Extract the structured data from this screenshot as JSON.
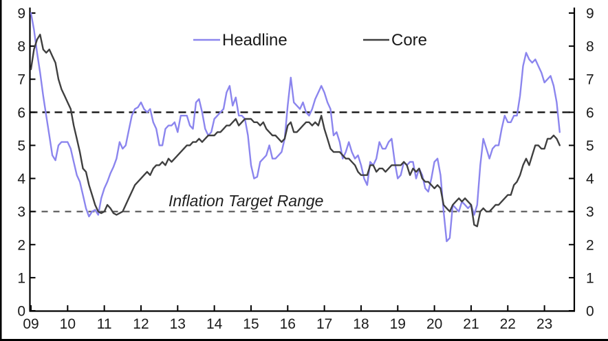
{
  "chart_data": {
    "type": "line",
    "title": "",
    "annotation": "Inflation Target Range",
    "x_start_year": 2009,
    "x_months_per_point": 1,
    "x_tick_labels": [
      "09",
      "10",
      "11",
      "12",
      "13",
      "14",
      "15",
      "16",
      "17",
      "18",
      "19",
      "20",
      "21",
      "22",
      "23"
    ],
    "y_tick_labels": [
      "0",
      "1",
      "2",
      "3",
      "4",
      "5",
      "6",
      "7",
      "8",
      "9"
    ],
    "ylim": [
      0,
      9
    ],
    "grid": "off",
    "legend_position": "top",
    "target_range": {
      "lower": 3,
      "upper": 6,
      "upper_line_color": "#141414",
      "lower_line_color": "#555555",
      "style": "dashed"
    },
    "series": [
      {
        "name": "Headline",
        "color": "#8b85ee",
        "start": "2009-01",
        "values": [
          9.0,
          8.5,
          7.8,
          7.2,
          6.5,
          5.9,
          5.3,
          4.7,
          4.55,
          5.0,
          5.1,
          5.1,
          5.1,
          4.9,
          4.5,
          4.1,
          3.9,
          3.5,
          3.1,
          2.85,
          3.0,
          3.05,
          2.9,
          3.4,
          3.7,
          3.9,
          4.15,
          4.35,
          4.6,
          5.1,
          4.9,
          5.0,
          5.45,
          5.9,
          6.1,
          6.15,
          6.3,
          6.1,
          6.0,
          6.1,
          5.7,
          5.5,
          5.0,
          5.0,
          5.5,
          5.6,
          5.6,
          5.7,
          5.4,
          5.9,
          5.9,
          5.9,
          5.6,
          5.5,
          6.3,
          6.4,
          6.0,
          5.5,
          5.3,
          5.4,
          5.8,
          5.9,
          6.0,
          6.1,
          6.6,
          6.8,
          6.2,
          6.45,
          5.9,
          5.9,
          5.8,
          5.3,
          4.4,
          4.0,
          4.05,
          4.5,
          4.6,
          4.7,
          5.0,
          4.6,
          4.6,
          4.7,
          4.8,
          5.2,
          6.2,
          7.05,
          6.3,
          6.2,
          6.1,
          6.3,
          6.0,
          5.9,
          6.1,
          6.4,
          6.6,
          6.8,
          6.6,
          6.3,
          6.1,
          5.3,
          5.4,
          5.1,
          4.6,
          4.8,
          5.1,
          4.8,
          4.6,
          4.7,
          4.4,
          4.0,
          3.8,
          4.5,
          4.4,
          4.6,
          5.1,
          4.9,
          4.9,
          5.1,
          5.2,
          4.5,
          4.0,
          4.1,
          4.5,
          4.4,
          4.5,
          4.5,
          4.0,
          4.3,
          4.1,
          3.7,
          3.6,
          4.0,
          4.5,
          4.6,
          4.1,
          3.0,
          2.1,
          2.2,
          3.2,
          3.1,
          3.0,
          3.3,
          3.2,
          3.1,
          3.2,
          2.9,
          3.2,
          4.4,
          5.2,
          4.9,
          4.6,
          4.9,
          5.0,
          5.0,
          5.5,
          5.9,
          5.7,
          5.7,
          5.9,
          5.9,
          6.5,
          7.4,
          7.8,
          7.6,
          7.5,
          7.6,
          7.4,
          7.2,
          6.9,
          7.0,
          7.1,
          6.8,
          6.3,
          5.4
        ]
      },
      {
        "name": "Core",
        "color": "#3f3f3f",
        "start": "2009-01",
        "values": [
          7.3,
          7.9,
          8.2,
          8.35,
          7.9,
          7.8,
          7.9,
          7.7,
          7.5,
          7.0,
          6.7,
          6.5,
          6.3,
          6.1,
          5.6,
          5.2,
          4.8,
          4.3,
          4.2,
          3.8,
          3.5,
          3.2,
          3.0,
          2.95,
          3.0,
          3.2,
          3.1,
          2.95,
          2.9,
          2.95,
          3.0,
          3.2,
          3.4,
          3.6,
          3.8,
          3.9,
          4.0,
          4.1,
          4.2,
          4.1,
          4.3,
          4.4,
          4.4,
          4.5,
          4.4,
          4.6,
          4.5,
          4.6,
          4.7,
          4.8,
          4.9,
          5.0,
          5.0,
          5.1,
          5.1,
          5.2,
          5.1,
          5.2,
          5.3,
          5.3,
          5.3,
          5.4,
          5.4,
          5.5,
          5.6,
          5.6,
          5.7,
          5.8,
          5.6,
          5.7,
          5.8,
          5.8,
          5.8,
          5.7,
          5.7,
          5.6,
          5.7,
          5.5,
          5.4,
          5.3,
          5.3,
          5.2,
          5.1,
          5.2,
          5.6,
          5.7,
          5.4,
          5.4,
          5.5,
          5.6,
          5.7,
          5.7,
          5.6,
          5.7,
          5.6,
          5.9,
          5.5,
          5.2,
          4.9,
          4.8,
          4.8,
          4.8,
          4.7,
          4.6,
          4.6,
          4.5,
          4.4,
          4.2,
          4.1,
          4.1,
          4.1,
          4.4,
          4.4,
          4.2,
          4.3,
          4.3,
          4.2,
          4.3,
          4.4,
          4.4,
          4.4,
          4.4,
          4.5,
          4.4,
          4.1,
          4.3,
          4.2,
          4.3,
          4.0,
          3.9,
          3.9,
          3.8,
          3.7,
          3.8,
          3.7,
          3.2,
          3.1,
          3.0,
          3.2,
          3.3,
          3.4,
          3.3,
          3.4,
          3.3,
          3.2,
          2.6,
          2.55,
          3.0,
          3.1,
          3.0,
          3.0,
          3.1,
          3.2,
          3.2,
          3.3,
          3.4,
          3.5,
          3.5,
          3.8,
          3.9,
          4.1,
          4.4,
          4.6,
          4.4,
          4.7,
          5.0,
          5.0,
          4.9,
          4.9,
          5.2,
          5.2,
          5.3,
          5.2,
          5.0
        ]
      }
    ]
  },
  "colors": {
    "background": "#ffffff",
    "axis": "#000000",
    "tick_text": "#1a1a1a",
    "image_border": "#000000"
  }
}
